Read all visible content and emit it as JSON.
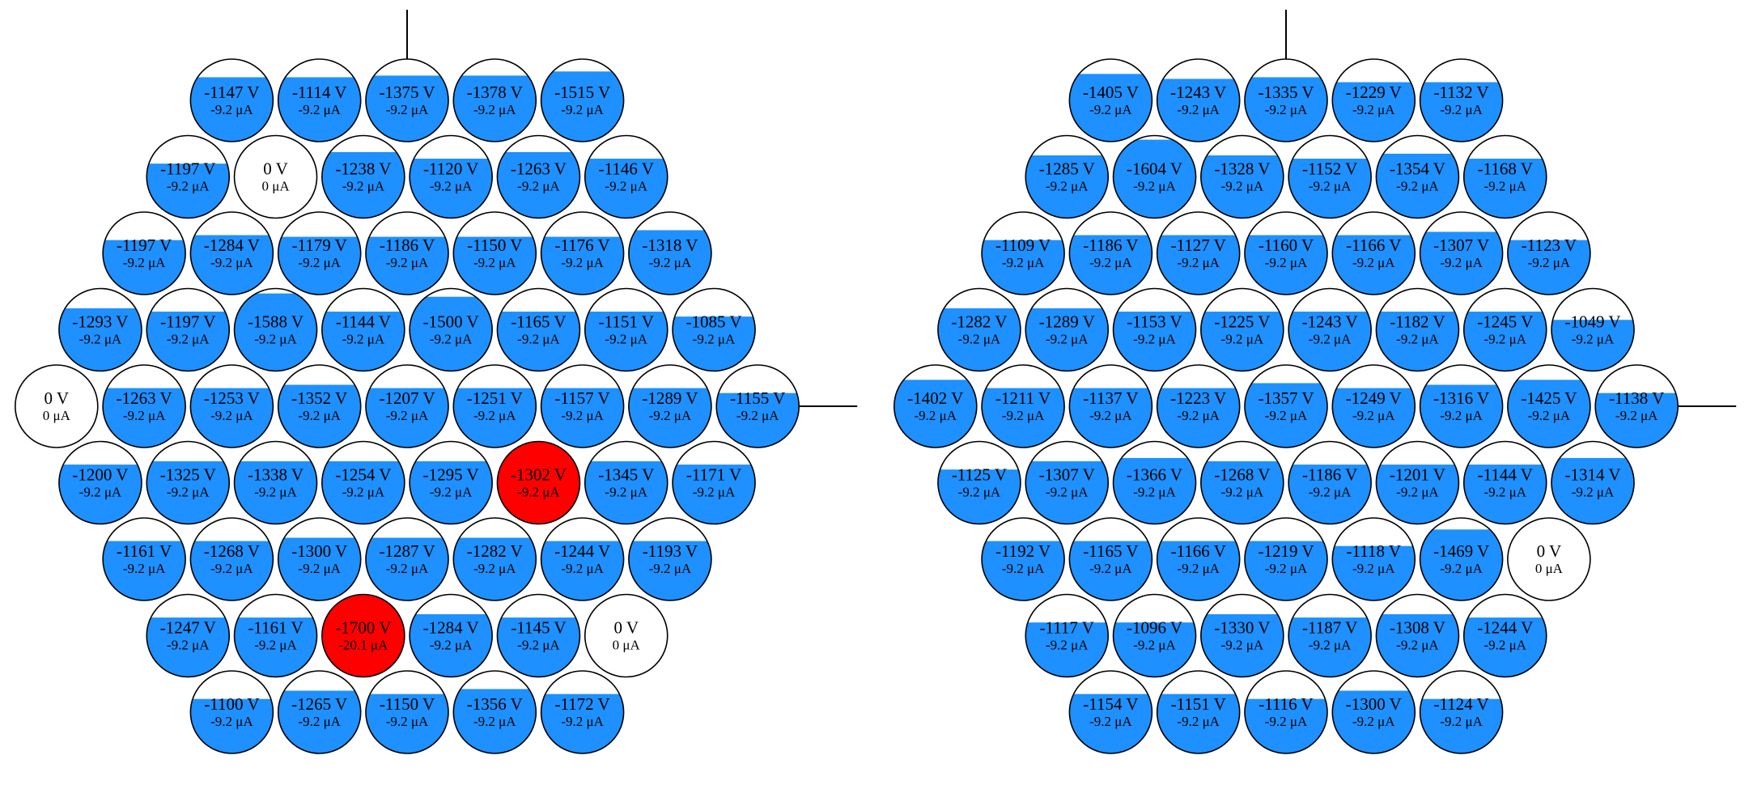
{
  "colors": {
    "fill": "#1e90ff",
    "alarm": "#ff0000",
    "off": "#ffffff",
    "stroke": "#000000"
  },
  "detectors": [
    {
      "name": "left-detector",
      "rows": [
        [
          {
            "v": "-1147 V",
            "i": "-9.2 μA",
            "level": 0.78,
            "state": "normal"
          },
          {
            "v": "-1114 V",
            "i": "-9.2 μA",
            "level": 0.78,
            "state": "normal"
          },
          {
            "v": "-1375 V",
            "i": "-9.2 μA",
            "level": 0.8,
            "state": "normal"
          },
          {
            "v": "-1378 V",
            "i": "-9.2 μA",
            "level": 0.8,
            "state": "normal"
          },
          {
            "v": "-1515 V",
            "i": "-9.2 μA",
            "level": 0.85,
            "state": "normal"
          }
        ],
        [
          {
            "v": "-1197 V",
            "i": "-9.2 μA",
            "level": 0.66,
            "state": "normal"
          },
          {
            "v": "0 V",
            "i": "0 μA",
            "level": 0,
            "state": "off"
          },
          {
            "v": "-1238 V",
            "i": "-9.2 μA",
            "level": 0.8,
            "state": "normal"
          },
          {
            "v": "-1120 V",
            "i": "-9.2 μA",
            "level": 0.72,
            "state": "normal"
          },
          {
            "v": "-1263 V",
            "i": "-9.2 μA",
            "level": 0.8,
            "state": "normal"
          },
          {
            "v": "-1146 V",
            "i": "-9.2 μA",
            "level": 0.72,
            "state": "normal"
          }
        ],
        [
          {
            "v": "-1197 V",
            "i": "-9.2 μA",
            "level": 0.66,
            "state": "normal"
          },
          {
            "v": "-1284 V",
            "i": "-9.2 μA",
            "level": 0.72,
            "state": "normal"
          },
          {
            "v": "-1179 V",
            "i": "-9.2 μA",
            "level": 0.7,
            "state": "normal"
          },
          {
            "v": "-1186 V",
            "i": "-9.2 μA",
            "level": 0.7,
            "state": "normal"
          },
          {
            "v": "-1150 V",
            "i": "-9.2 μA",
            "level": 0.7,
            "state": "normal"
          },
          {
            "v": "-1176 V",
            "i": "-9.2 μA",
            "level": 0.7,
            "state": "normal"
          },
          {
            "v": "-1318 V",
            "i": "-9.2 μA",
            "level": 0.78,
            "state": "normal"
          }
        ],
        [
          {
            "v": "-1293 V",
            "i": "-9.2 μA",
            "level": 0.76,
            "state": "normal"
          },
          {
            "v": "-1197 V",
            "i": "-9.2 μA",
            "level": 0.72,
            "state": "normal"
          },
          {
            "v": "-1588 V",
            "i": "-9.2 μA",
            "level": 0.94,
            "state": "normal"
          },
          {
            "v": "-1144 V",
            "i": "-9.2 μA",
            "level": 0.72,
            "state": "normal"
          },
          {
            "v": "-1500 V",
            "i": "-9.2 μA",
            "level": 0.9,
            "state": "normal"
          },
          {
            "v": "-1165 V",
            "i": "-9.2 μA",
            "level": 0.72,
            "state": "normal"
          },
          {
            "v": "-1151 V",
            "i": "-9.2 μA",
            "level": 0.72,
            "state": "normal"
          },
          {
            "v": "-1085 V",
            "i": "-9.2 μA",
            "level": 0.66,
            "state": "normal"
          }
        ],
        [
          {
            "v": "0 V",
            "i": "0 μA",
            "level": 0,
            "state": "off"
          },
          {
            "v": "-1263 V",
            "i": "-9.2 μA",
            "level": 0.72,
            "state": "normal"
          },
          {
            "v": "-1253 V",
            "i": "-9.2 μA",
            "level": 0.72,
            "state": "normal"
          },
          {
            "v": "-1352 V",
            "i": "-9.2 μA",
            "level": 0.76,
            "state": "normal"
          },
          {
            "v": "-1207 V",
            "i": "-9.2 μA",
            "level": 0.72,
            "state": "normal"
          },
          {
            "v": "-1251 V",
            "i": "-9.2 μA",
            "level": 0.72,
            "state": "normal"
          },
          {
            "v": "-1157 V",
            "i": "-9.2 μA",
            "level": 0.72,
            "state": "normal"
          },
          {
            "v": "-1289 V",
            "i": "-9.2 μA",
            "level": 0.72,
            "state": "normal"
          },
          {
            "v": "-1155 V",
            "i": "-9.2 μA",
            "level": 0.66,
            "state": "normal"
          }
        ],
        [
          {
            "v": "-1200 V",
            "i": "-9.2 μA",
            "level": 0.72,
            "state": "normal"
          },
          {
            "v": "-1325 V",
            "i": "-9.2 μA",
            "level": 0.76,
            "state": "normal"
          },
          {
            "v": "-1338 V",
            "i": "-9.2 μA",
            "level": 0.76,
            "state": "normal"
          },
          {
            "v": "-1254 V",
            "i": "-9.2 μA",
            "level": 0.76,
            "state": "normal"
          },
          {
            "v": "-1295 V",
            "i": "-9.2 μA",
            "level": 0.76,
            "state": "normal"
          },
          {
            "v": "-1302 V",
            "i": "-9.2 μA",
            "level": 1,
            "state": "alarm"
          },
          {
            "v": "-1345 V",
            "i": "-9.2 μA",
            "level": 0.76,
            "state": "normal"
          },
          {
            "v": "-1171 V",
            "i": "-9.2 μA",
            "level": 0.72,
            "state": "normal"
          }
        ],
        [
          {
            "v": "-1161 V",
            "i": "-9.2 μA",
            "level": 0.72,
            "state": "normal"
          },
          {
            "v": "-1268 V",
            "i": "-9.2 μA",
            "level": 0.72,
            "state": "normal"
          },
          {
            "v": "-1300 V",
            "i": "-9.2 μA",
            "level": 0.76,
            "state": "normal"
          },
          {
            "v": "-1287 V",
            "i": "-9.2 μA",
            "level": 0.76,
            "state": "normal"
          },
          {
            "v": "-1282 V",
            "i": "-9.2 μA",
            "level": 0.76,
            "state": "normal"
          },
          {
            "v": "-1244 V",
            "i": "-9.2 μA",
            "level": 0.72,
            "state": "normal"
          },
          {
            "v": "-1193 V",
            "i": "-9.2 μA",
            "level": 0.72,
            "state": "normal"
          }
        ],
        [
          {
            "v": "-1247 V",
            "i": "-9.2 μA",
            "level": 0.72,
            "state": "normal"
          },
          {
            "v": "-1161 V",
            "i": "-9.2 μA",
            "level": 0.72,
            "state": "normal"
          },
          {
            "v": "-1700 V",
            "i": "-20.1 μA",
            "level": 1,
            "state": "alarm"
          },
          {
            "v": "-1284 V",
            "i": "-9.2 μA",
            "level": 0.76,
            "state": "normal"
          },
          {
            "v": "-1145 V",
            "i": "-9.2 μA",
            "level": 0.72,
            "state": "normal"
          },
          {
            "v": "0 V",
            "i": "0 μA",
            "level": 0,
            "state": "off"
          }
        ],
        [
          {
            "v": "-1100 V",
            "i": "-9.2 μA",
            "level": 0.66,
            "state": "normal"
          },
          {
            "v": "-1265 V",
            "i": "-9.2 μA",
            "level": 0.76,
            "state": "normal"
          },
          {
            "v": "-1150 V",
            "i": "-9.2 μA",
            "level": 0.72,
            "state": "normal"
          },
          {
            "v": "-1356 V",
            "i": "-9.2 μA",
            "level": 0.78,
            "state": "normal"
          },
          {
            "v": "-1172 V",
            "i": "-9.2 μA",
            "level": 0.72,
            "state": "normal"
          }
        ]
      ]
    },
    {
      "name": "right-detector",
      "rows": [
        [
          {
            "v": "-1405 V",
            "i": "-9.2 μA",
            "level": 0.82,
            "state": "normal"
          },
          {
            "v": "-1243 V",
            "i": "-9.2 μA",
            "level": 0.76,
            "state": "normal"
          },
          {
            "v": "-1335 V",
            "i": "-9.2 μA",
            "level": 0.78,
            "state": "normal"
          },
          {
            "v": "-1229 V",
            "i": "-9.2 μA",
            "level": 0.72,
            "state": "normal"
          },
          {
            "v": "-1132 V",
            "i": "-9.2 μA",
            "level": 0.72,
            "state": "normal"
          }
        ],
        [
          {
            "v": "-1285 V",
            "i": "-9.2 μA",
            "level": 0.76,
            "state": "normal"
          },
          {
            "v": "-1604 V",
            "i": "-9.2 μA",
            "level": 0.95,
            "state": "normal"
          },
          {
            "v": "-1328 V",
            "i": "-9.2 μA",
            "level": 0.76,
            "state": "normal"
          },
          {
            "v": "-1152 V",
            "i": "-9.2 μA",
            "level": 0.72,
            "state": "normal"
          },
          {
            "v": "-1354 V",
            "i": "-9.2 μA",
            "level": 0.78,
            "state": "normal"
          },
          {
            "v": "-1168 V",
            "i": "-9.2 μA",
            "level": 0.72,
            "state": "normal"
          }
        ],
        [
          {
            "v": "-1109 V",
            "i": "-9.2 μA",
            "level": 0.66,
            "state": "normal"
          },
          {
            "v": "-1186 V",
            "i": "-9.2 μA",
            "level": 0.72,
            "state": "normal"
          },
          {
            "v": "-1127 V",
            "i": "-9.2 μA",
            "level": 0.72,
            "state": "normal"
          },
          {
            "v": "-1160 V",
            "i": "-9.2 μA",
            "level": 0.72,
            "state": "normal"
          },
          {
            "v": "-1166 V",
            "i": "-9.2 μA",
            "level": 0.72,
            "state": "normal"
          },
          {
            "v": "-1307 V",
            "i": "-9.2 μA",
            "level": 0.76,
            "state": "normal"
          },
          {
            "v": "-1123 V",
            "i": "-9.2 μA",
            "level": 0.66,
            "state": "normal"
          }
        ],
        [
          {
            "v": "-1282 V",
            "i": "-9.2 μA",
            "level": 0.76,
            "state": "normal"
          },
          {
            "v": "-1289 V",
            "i": "-9.2 μA",
            "level": 0.76,
            "state": "normal"
          },
          {
            "v": "-1153 V",
            "i": "-9.2 μA",
            "level": 0.72,
            "state": "normal"
          },
          {
            "v": "-1225 V",
            "i": "-9.2 μA",
            "level": 0.72,
            "state": "normal"
          },
          {
            "v": "-1243 V",
            "i": "-9.2 μA",
            "level": 0.72,
            "state": "normal"
          },
          {
            "v": "-1182 V",
            "i": "-9.2 μA",
            "level": 0.72,
            "state": "normal"
          },
          {
            "v": "-1245 V",
            "i": "-9.2 μA",
            "level": 0.72,
            "state": "normal"
          },
          {
            "v": "-1049 V",
            "i": "-9.2 μA",
            "level": 0.62,
            "state": "normal"
          }
        ],
        [
          {
            "v": "-1402 V",
            "i": "-9.2 μA",
            "level": 0.82,
            "state": "normal"
          },
          {
            "v": "-1211 V",
            "i": "-9.2 μA",
            "level": 0.72,
            "state": "normal"
          },
          {
            "v": "-1137 V",
            "i": "-9.2 μA",
            "level": 0.72,
            "state": "normal"
          },
          {
            "v": "-1223 V",
            "i": "-9.2 μA",
            "level": 0.72,
            "state": "normal"
          },
          {
            "v": "-1357 V",
            "i": "-9.2 μA",
            "level": 0.78,
            "state": "normal"
          },
          {
            "v": "-1249 V",
            "i": "-9.2 μA",
            "level": 0.72,
            "state": "normal"
          },
          {
            "v": "-1316 V",
            "i": "-9.2 μA",
            "level": 0.76,
            "state": "normal"
          },
          {
            "v": "-1425 V",
            "i": "-9.2 μA",
            "level": 0.82,
            "state": "normal"
          },
          {
            "v": "-1138 V",
            "i": "-9.2 μA",
            "level": 0.66,
            "state": "normal"
          }
        ],
        [
          {
            "v": "-1125 V",
            "i": "-9.2 μA",
            "level": 0.66,
            "state": "normal"
          },
          {
            "v": "-1307 V",
            "i": "-9.2 μA",
            "level": 0.76,
            "state": "normal"
          },
          {
            "v": "-1366 V",
            "i": "-9.2 μA",
            "level": 0.8,
            "state": "normal"
          },
          {
            "v": "-1268 V",
            "i": "-9.2 μA",
            "level": 0.76,
            "state": "normal"
          },
          {
            "v": "-1186 V",
            "i": "-9.2 μA",
            "level": 0.72,
            "state": "normal"
          },
          {
            "v": "-1201 V",
            "i": "-9.2 μA",
            "level": 0.72,
            "state": "normal"
          },
          {
            "v": "-1144 V",
            "i": "-9.2 μA",
            "level": 0.72,
            "state": "normal"
          },
          {
            "v": "-1314 V",
            "i": "-9.2 μA",
            "level": 0.8,
            "state": "normal"
          }
        ],
        [
          {
            "v": "-1192 V",
            "i": "-9.2 μA",
            "level": 0.72,
            "state": "normal"
          },
          {
            "v": "-1165 V",
            "i": "-9.2 μA",
            "level": 0.72,
            "state": "normal"
          },
          {
            "v": "-1166 V",
            "i": "-9.2 μA",
            "level": 0.72,
            "state": "normal"
          },
          {
            "v": "-1219 V",
            "i": "-9.2 μA",
            "level": 0.72,
            "state": "normal"
          },
          {
            "v": "-1118 V",
            "i": "-9.2 μA",
            "level": 0.66,
            "state": "normal"
          },
          {
            "v": "-1469 V",
            "i": "-9.2 μA",
            "level": 0.86,
            "state": "normal"
          },
          {
            "v": "0 V",
            "i": "0 μA",
            "level": 0,
            "state": "off"
          }
        ],
        [
          {
            "v": "-1117 V",
            "i": "-9.2 μA",
            "level": 0.66,
            "state": "normal"
          },
          {
            "v": "-1096 V",
            "i": "-9.2 μA",
            "level": 0.66,
            "state": "normal"
          },
          {
            "v": "-1330 V",
            "i": "-9.2 μA",
            "level": 0.76,
            "state": "normal"
          },
          {
            "v": "-1187 V",
            "i": "-9.2 μA",
            "level": 0.72,
            "state": "normal"
          },
          {
            "v": "-1308 V",
            "i": "-9.2 μA",
            "level": 0.76,
            "state": "normal"
          },
          {
            "v": "-1244 V",
            "i": "-9.2 μA",
            "level": 0.72,
            "state": "normal"
          }
        ],
        [
          {
            "v": "-1154 V",
            "i": "-9.2 μA",
            "level": 0.72,
            "state": "normal"
          },
          {
            "v": "-1151 V",
            "i": "-9.2 μA",
            "level": 0.72,
            "state": "normal"
          },
          {
            "v": "-1116 V",
            "i": "-9.2 μA",
            "level": 0.66,
            "state": "normal"
          },
          {
            "v": "-1300 V",
            "i": "-9.2 μA",
            "level": 0.76,
            "state": "normal"
          },
          {
            "v": "-1124 V",
            "i": "-9.2 μA",
            "level": 0.66,
            "state": "normal"
          }
        ]
      ]
    }
  ]
}
